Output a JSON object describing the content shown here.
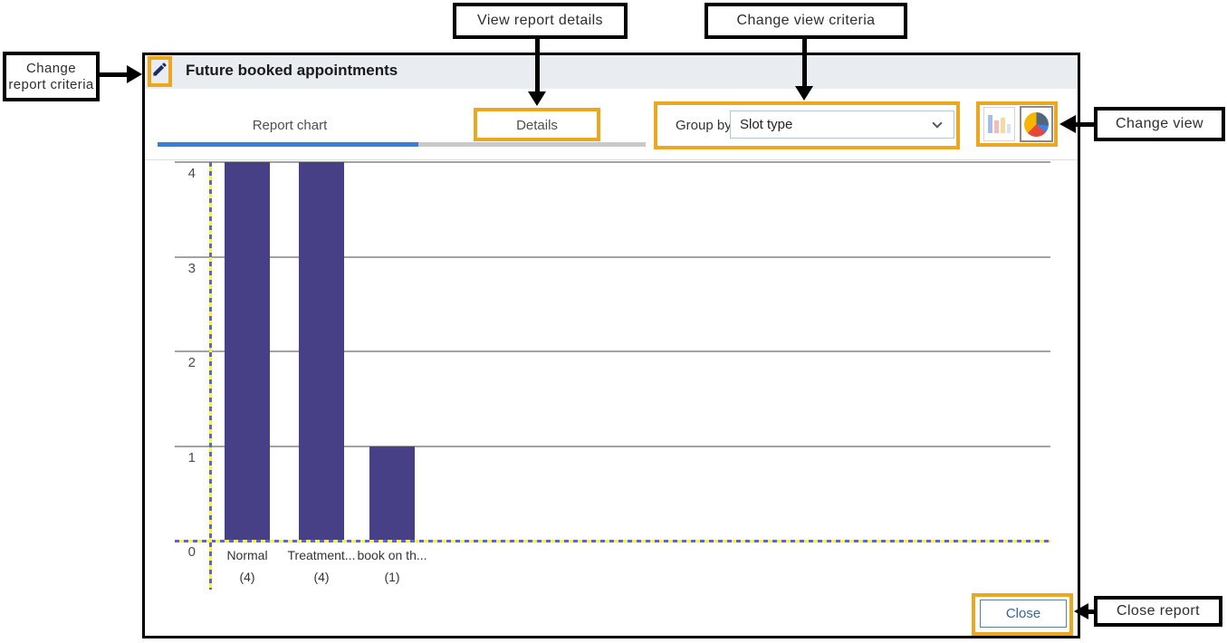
{
  "annotations": {
    "change_report_criteria_line1": "Change",
    "change_report_criteria_line2": "report criteria",
    "view_report_details": "View report details",
    "change_view_criteria": "Change view criteria",
    "change_view": "Change view",
    "close_report": "Close report"
  },
  "window": {
    "title": "Future booked appointments",
    "tabs": {
      "report_chart": "Report chart",
      "details": "Details"
    },
    "group_by_label": "Group by",
    "group_by_value": "Slot type",
    "close_label": "Close"
  },
  "icons": {
    "pencil": "edit-pencil-icon",
    "bar_view": "bar-chart-view-icon",
    "pie_view": "pie-chart-view-icon",
    "chevron": "chevron-down-icon"
  },
  "colors": {
    "highlight": "#eba71d",
    "header_bg": "#e9edf2",
    "active_tab_underline": "#3381d8",
    "inactive_tab_underline": "#c9c9c9",
    "bar": "#474086",
    "axis_dash_blue": "#5b63e3",
    "axis_dash_yellow": "#f8f04f"
  },
  "chart_data": {
    "type": "bar",
    "title": "",
    "xlabel": "",
    "ylabel": "",
    "categories": [
      "Normal",
      "Treatment...",
      "book on th..."
    ],
    "values": [
      4,
      4,
      1
    ],
    "count_labels": [
      "(4)",
      "(4)",
      "(1)"
    ],
    "y_ticks": [
      4,
      3,
      2,
      1,
      0
    ],
    "ylim": [
      0,
      4
    ],
    "grid": true,
    "legend": false,
    "bar_color": "#474086"
  }
}
